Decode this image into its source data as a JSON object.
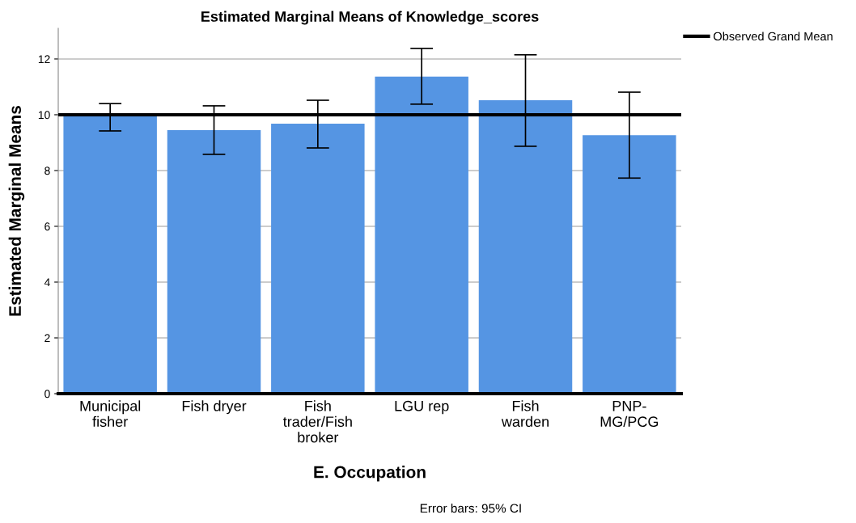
{
  "chart_data": {
    "type": "bar",
    "title": "Estimated Marginal Means of Knowledge_scores",
    "xlabel": "E. Occupation",
    "ylabel": "Estimated Marginal Means",
    "categories": [
      "Municipal\nfisher",
      "Fish dryer",
      "Fish\ntrader/Fish\nbroker",
      "LGU rep",
      "Fish\nwarden",
      "PNP-\nMG/PCG"
    ],
    "values": [
      10.0,
      9.45,
      9.68,
      11.37,
      10.52,
      9.27
    ],
    "errors": [
      [
        9.42,
        10.4
      ],
      [
        8.58,
        10.32
      ],
      [
        8.81,
        10.52
      ],
      [
        10.38,
        12.38
      ],
      [
        8.87,
        12.15
      ],
      [
        7.73,
        10.81
      ]
    ],
    "color": "#5595e3",
    "ylim": [
      0,
      13.1
    ],
    "yticks": [
      0,
      2,
      4,
      6,
      8,
      10,
      12
    ],
    "grid": "y",
    "ref_lines": [
      {
        "axis": "y",
        "value": 10.0,
        "label": "Observed Grand Mean",
        "color": "#000000"
      }
    ],
    "legend": "top right",
    "annotations": [
      "Error bars: 95% CI"
    ]
  }
}
